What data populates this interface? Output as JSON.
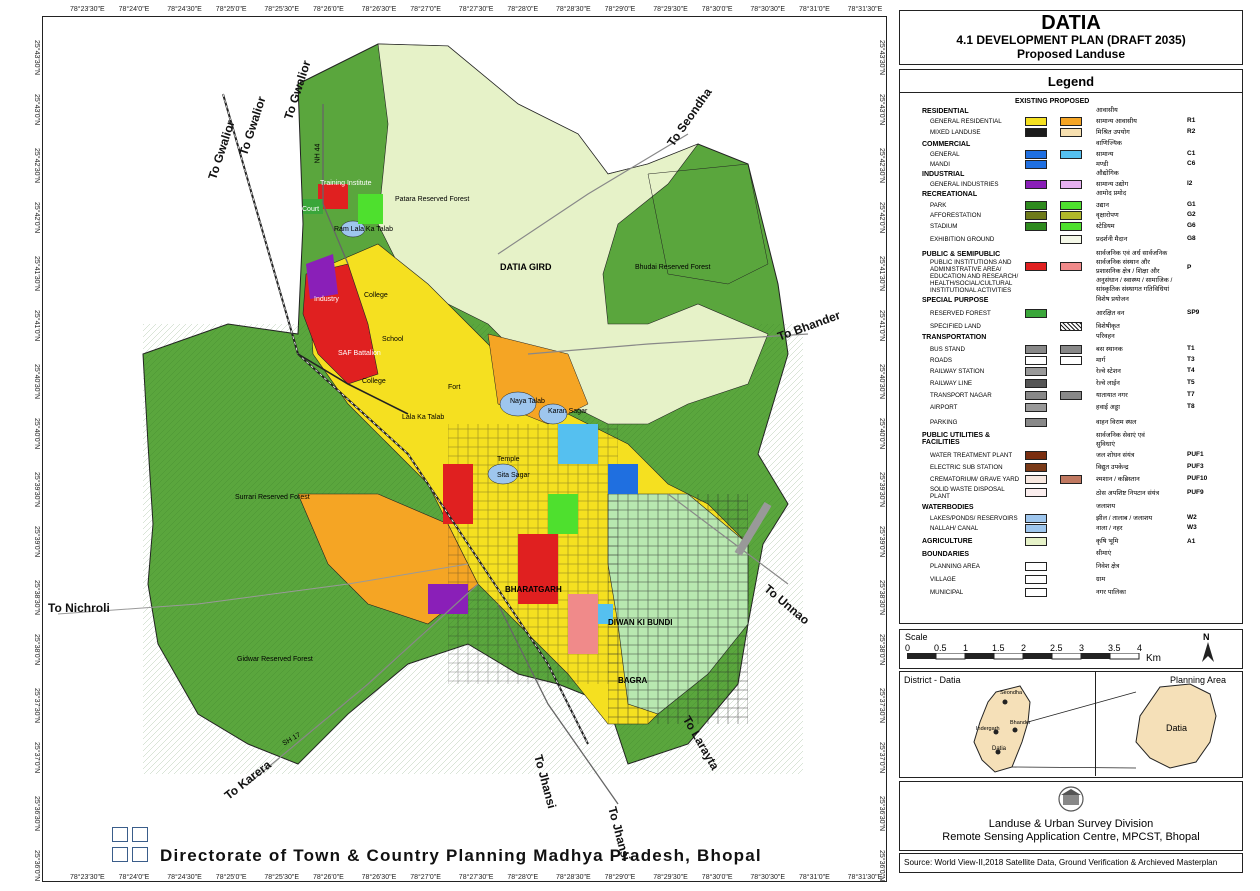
{
  "colors": {
    "forest": "#5aa63d",
    "agriculture": "#e6f2c8",
    "residential_existing": "#f5e020",
    "residential_proposed": "#f5a524",
    "mixed_existing": "#1b1b1b",
    "mixed_proposed": "#f7e0b0",
    "commercial": "#1f6fe0",
    "commercial_proposed": "#55c0f0",
    "industrial": "#8a1fb8",
    "industrial_proposed": "#e6b0f0",
    "public": "#e02020",
    "public_proposed": "#f08a8a",
    "park": "#2e8a1e",
    "park_proposed": "#4ee02e",
    "afforestation": "#6e7a1a",
    "afforestation_proposed": "#b0b82a",
    "reserved": "#3aa63a",
    "water": "#9ec6ee",
    "water_treatment": "#7a2e10",
    "crematorium_proposed": "#c07860"
  },
  "map": {
    "lon_ticks": [
      "78°23'30\"E",
      "78°24'0\"E",
      "78°24'30\"E",
      "78°25'0\"E",
      "78°25'30\"E",
      "78°26'0\"E",
      "78°26'30\"E",
      "78°27'0\"E",
      "78°27'30\"E",
      "78°28'0\"E",
      "78°28'30\"E",
      "78°29'0\"E",
      "78°29'30\"E",
      "78°30'0\"E",
      "78°30'30\"E",
      "78°31'0\"E",
      "78°31'30\"E"
    ],
    "lat_ticks": [
      "25°43'30\"N",
      "25°43'0\"N",
      "25°42'30\"N",
      "25°42'0\"N",
      "25°41'30\"N",
      "25°41'0\"N",
      "25°40'30\"N",
      "25°40'0\"N",
      "25°39'30\"N",
      "25°39'0\"N",
      "25°38'30\"N",
      "25°38'0\"N",
      "25°37'30\"N",
      "25°37'0\"N",
      "25°36'30\"N",
      "25°36'0\"N"
    ],
    "roads": {
      "gwalior1": "To Gwalior",
      "gwalior2": "To Gwalior",
      "gwalior3": "To Gwalior",
      "seondha": "To Seondha",
      "bhander": "To Bhander",
      "unnao": "To Unnao",
      "larayta": "To Larayta",
      "nichroli": "To Nichroli",
      "karera": "To Karera",
      "jhansi1": "To Jhansi",
      "jhansi2": "To Jhansi"
    },
    "labels": {
      "patara": "Patara Reserved Forest",
      "datia_gird": "DATIA GIRD",
      "bhudai": "Bhudai Reserved Forest",
      "surrari": "Surrari Reserved Forest",
      "gidwar": "Gidwar Reserved Forest",
      "nh44": "NH 44",
      "sh17": "SH 17",
      "training": "Training Institute",
      "court": "Court",
      "ramlala": "Ram Lala Ka Talab",
      "industry": "Industry",
      "college1": "College",
      "sap": "SAF Battalion",
      "college2": "College",
      "fort": "Fort",
      "naya_talab": "Naya Talab",
      "karan_sagar": "Karan Sagar",
      "lala_ka_talab": "Lala Ka Talab",
      "temple": "Temple",
      "sita_sagar": "Sita Sagar",
      "bharatgarh": "BHARATGARH",
      "diwan_ki_bundi": "DIWAN KI BUNDI",
      "bagra": "BAGRA",
      "shiv_school": "School"
    },
    "footer": "Directorate of Town & Country Planning Madhya Pradesh, Bhopal"
  },
  "title": {
    "name": "DATIA",
    "plan": "4.1 DEVELOPMENT PLAN (DRAFT 2035)",
    "sub": "Proposed Landuse"
  },
  "legend": {
    "title": "Legend",
    "header": "EXISTING PROPOSED",
    "residential": {
      "cat": "RESIDENTIAL",
      "hi": "आवासीय",
      "r1": "GENERAL RESIDENTIAL",
      "r1_hi": "सामान्य आवासीय",
      "r1_code": "R1",
      "r2": "MIXED LANDUSE",
      "r2_hi": "मिश्रित उपयोग",
      "r2_code": "R2"
    },
    "commercial": {
      "cat": "COMMERCIAL",
      "hi": "वाणिज्यिक",
      "c1": "GENERAL",
      "c1_hi": "सामान्य",
      "c1_code": "C1",
      "c6": "MANDI",
      "c6_hi": "मण्डी",
      "c6_code": "C6"
    },
    "industrial": {
      "cat": "INDUSTRIAL",
      "hi": "औद्योगिक",
      "i2": "GENERAL INDUSTRIES",
      "i2_hi": "सामान्य उद्योग",
      "i2_code": "I2"
    },
    "recreational": {
      "cat": "RECREATIONAL",
      "hi": "आमोद प्रमोद",
      "g1": "PARK",
      "g1_hi": "उद्यान",
      "g1_code": "G1",
      "g2": "AFFORESTATION",
      "g2_hi": "वृक्षारोपण",
      "g2_code": "G2",
      "g6": "STADIUM",
      "g6_hi": "स्टेडियम",
      "g6_code": "G6",
      "g8": "EXHIBITION GROUND",
      "g8_hi": "प्रदर्शनी मैदान",
      "g8_code": "G8"
    },
    "public": {
      "cat": "PUBLIC & SEMIPUBLIC",
      "hi": "सार्वजनिक एवं अर्ध सार्वजनिक",
      "p": "PUBLIC INSTITUTIONS AND",
      "p2": "ADMINISTRATIVE AREA/",
      "p3": "EDUCATION AND RESEARCH/",
      "p4": "HEALTH/SOCIAL/CULTURAL",
      "p5": "INSTITUTIONAL ACTIVITIES",
      "p_hi1": "सार्वजनिक संस्थान और",
      "p_hi2": "प्रशासनिक क्षेत्र / शिक्षा और",
      "p_hi3": "अनुसंधान / स्वास्थ्य / सामाजिक /",
      "p_hi4": "सांस्कृतिक संस्थागत गतिविधियां",
      "p_code": "P"
    },
    "special": {
      "cat": "SPECIAL PURPOSE",
      "hi": "विशेष प्रयोजन",
      "sp9": "RESERVED FOREST",
      "sp9_hi": "आरक्षित वन",
      "sp9_code": "SP9",
      "spec": "SPECIFIED LAND",
      "spec_hi": "विशेषीकृत"
    },
    "transport": {
      "cat": "TRANSPORTATION",
      "hi": "परिवहन",
      "t1": "BUS STAND",
      "t1_hi": "बस स्थानक",
      "t1_code": "T1",
      "t3": "ROADS",
      "t3_hi": "मार्ग",
      "t3_code": "T3",
      "t4": "RAILWAY STATION",
      "t4_hi": "रेल्वे स्टेशन",
      "t4_code": "T4",
      "t5": "RAILWAY LINE",
      "t5_hi": "रेल्वे लाईन",
      "t5_code": "T5",
      "t7": "TRANSPORT NAGAR",
      "t7_hi": "यातायात नगर",
      "t7_code": "T7",
      "t8": "AIRPORT",
      "t8_hi": "हवाई अड्डा",
      "t8_code": "T8",
      "park": "PARKING",
      "park_hi": "वाहन विराम स्थल"
    },
    "utilities": {
      "cat": "PUBLIC UTILITIES &",
      "cat2": "FACILITIES",
      "hi": "सार्वजनिक सेवाएं एवं",
      "hi2": "सुविधाएं",
      "puf1": "WATER TREATMENT PLANT",
      "puf1_hi": "जल शोधन संयंत्र",
      "puf1_code": "PUF1",
      "puf3": "ELECTRIC SUB STATION",
      "puf3_hi": "विद्युत उपकेन्द्र",
      "puf3_code": "PUF3",
      "puf10": "CREMATORIUM/ GRAVE YARD",
      "puf10_hi": "श्मशान / कब्रिस्तान",
      "puf10_code": "PUF10",
      "puf9": "SOLID WASTE DISPOSAL",
      "puf9b": "PLANT",
      "puf9_hi": "ठोस अपशिष्ट निपटान संयंत्र",
      "puf9_code": "PUF9"
    },
    "water": {
      "cat": "WATERBODIES",
      "hi": "जलाशय",
      "w2": "LAKES/PONDS/ RESERVOIRS",
      "w2_hi": "झील / तालाब / जलाशय",
      "w2_code": "W2",
      "w3": "NALLAH/ CANAL",
      "w3_hi": "नाला / नहर",
      "w3_code": "W3"
    },
    "agri": {
      "cat": "AGRICULTURE",
      "hi": "कृषि भूमि",
      "code": "A1"
    },
    "bound": {
      "cat": "BOUNDARIES",
      "hi": "सीमाएं",
      "pa": "PLANNING AREA",
      "pa_hi": "निवेश क्षेत्र",
      "vi": "VILLAGE",
      "vi_hi": "ग्राम",
      "mu": "MUNICIPAL",
      "mu_hi": "नगर पालिका"
    }
  },
  "scale": {
    "label": "Scale",
    "ticks": [
      "0",
      "0.5",
      "1",
      "1.5",
      "2",
      "2.5",
      "3",
      "3.5",
      "4"
    ],
    "unit": "Km",
    "north": "N"
  },
  "inset": {
    "district": "District - Datia",
    "planning": "Planning Area",
    "seondha": "Seondha",
    "indergarh": "Indergarh",
    "bhander": "Bhander",
    "datia": "Datia",
    "datia2": "Datia"
  },
  "credit": {
    "line1": "Landuse & Urban Survey Division",
    "line2": "Remote Sensing Application Centre, MPCST, Bhopal"
  },
  "source": "Source: World View-II,2018 Satellite Data, Ground Verification & Archieved Masterplan"
}
